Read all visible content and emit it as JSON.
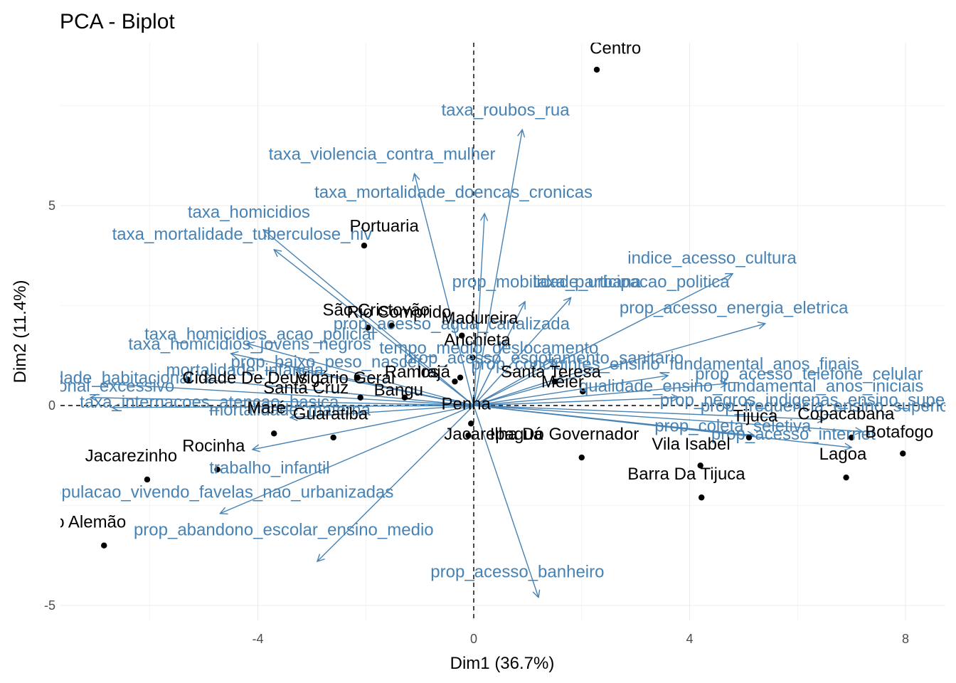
{
  "chart_data": {
    "type": "scatter",
    "title": "PCA - Biplot",
    "xlabel": "Dim1 (36.7%)",
    "ylabel": "Dim2 (11.4%)",
    "xlim": [
      -7.6,
      8.7
    ],
    "ylim": [
      -5.8,
      9.4
    ],
    "xticks": [
      -4,
      0,
      4,
      8
    ],
    "yticks": [
      -5,
      0,
      5
    ],
    "grid": true,
    "reference_lines": {
      "x": 0,
      "y": 0,
      "style": "dashed"
    },
    "colors": {
      "points": "#000000",
      "variables": "#4682b4",
      "grid": "#ebebeb",
      "zero_line": "#000000"
    },
    "individuals": [
      {
        "label": "Centro",
        "x": 2.28,
        "y": 8.4,
        "label_x": 2.15,
        "label_y": 8.8
      },
      {
        "label": "Portuaria",
        "x": -2.03,
        "y": 4.0,
        "label_x": -2.3,
        "label_y": 4.35
      },
      {
        "label": "São Cristovão",
        "x": -1.52,
        "y": 2.0,
        "label_x": -2.8,
        "label_y": 2.25
      },
      {
        "label": "Rio Comprido",
        "x": -1.96,
        "y": 1.95,
        "label_x": -2.35,
        "label_y": 2.2
      },
      {
        "label": "Madureira",
        "x": -0.22,
        "y": 1.75,
        "label_x": -0.6,
        "label_y": 2.05
      },
      {
        "label": "Anchieta",
        "x": -0.02,
        "y": 1.2,
        "label_x": -0.55,
        "label_y": 1.5
      },
      {
        "label": "Ramos",
        "x": -0.35,
        "y": 0.6,
        "label_x": -1.65,
        "label_y": 0.7
      },
      {
        "label": "Irajá",
        "x": -0.25,
        "y": 0.7,
        "label_x": -1.05,
        "label_y": 0.7
      },
      {
        "label": "Bangu",
        "x": -1.28,
        "y": 0.2,
        "label_x": -1.85,
        "label_y": 0.25
      },
      {
        "label": "Cidade De Deus",
        "x": -5.3,
        "y": 0.65,
        "label_x": -5.4,
        "label_y": 0.55
      },
      {
        "label": "Vigário Geral",
        "x": -2.15,
        "y": 0.7,
        "label_x": -3.3,
        "label_y": 0.55
      },
      {
        "label": "Santa Cruz",
        "x": -2.1,
        "y": 0.2,
        "label_x": -3.9,
        "label_y": 0.3
      },
      {
        "label": "Santa Teresa",
        "x": 1.5,
        "y": 0.6,
        "label_x": 0.5,
        "label_y": 0.7
      },
      {
        "label": "Méier",
        "x": 2.02,
        "y": 0.35,
        "label_x": 1.25,
        "label_y": 0.45
      },
      {
        "label": "Maré",
        "x": -3.7,
        "y": -0.7,
        "label_x": -4.2,
        "label_y": -0.2
      },
      {
        "label": "Guaratiba",
        "x": -2.6,
        "y": -0.8,
        "label_x": -3.35,
        "label_y": -0.35
      },
      {
        "label": "Penha",
        "x": -0.05,
        "y": -0.45,
        "label_x": -0.6,
        "label_y": -0.1
      },
      {
        "label": "Jacarepaguá",
        "x": -0.1,
        "y": -0.75,
        "label_x": -0.55,
        "label_y": -0.85
      },
      {
        "label": "Ilha Do Governador",
        "x": 2.0,
        "y": -1.3,
        "label_x": 0.3,
        "label_y": -0.85
      },
      {
        "label": "Vila Isabel",
        "x": 4.2,
        "y": -1.5,
        "label_x": 3.3,
        "label_y": -1.1
      },
      {
        "label": "Barra Da Tijuca",
        "x": 4.22,
        "y": -2.3,
        "label_x": 2.85,
        "label_y": -1.85
      },
      {
        "label": "Tijuca",
        "x": 5.1,
        "y": -0.8,
        "label_x": 4.8,
        "label_y": -0.4
      },
      {
        "label": "Copacabana",
        "x": 7.0,
        "y": -0.8,
        "label_x": 6.0,
        "label_y": -0.35
      },
      {
        "label": "Botafogo",
        "x": 7.95,
        "y": -1.2,
        "label_x": 7.25,
        "label_y": -0.8
      },
      {
        "label": "Lagoa",
        "x": 6.9,
        "y": -1.8,
        "label_x": 6.4,
        "label_y": -1.35
      },
      {
        "label": "Rocinha",
        "x": -4.75,
        "y": -1.6,
        "label_x": -5.4,
        "label_y": -1.15
      },
      {
        "label": "Jacarezinho",
        "x": -6.05,
        "y": -1.85,
        "label_x": -7.2,
        "label_y": -1.4
      },
      {
        "label": "Complexo Do Alemão",
        "x": -6.85,
        "y": -3.5,
        "label_x": -9.5,
        "label_y": -3.05
      }
    ],
    "variables": [
      {
        "label": "taxa_roubos_rua",
        "x": 0.9,
        "y": 6.9,
        "label_x": -0.6,
        "label_y": 7.25
      },
      {
        "label": "taxa_violencia_contra_mulher",
        "x": -1.1,
        "y": 5.8,
        "label_x": -3.8,
        "label_y": 6.15
      },
      {
        "label": "taxa_mortalidade_doencas_cronicas",
        "x": 0.2,
        "y": 4.8,
        "label_x": -2.95,
        "label_y": 5.2
      },
      {
        "label": "taxa_homicidios",
        "x": -3.9,
        "y": 4.4,
        "label_x": -5.3,
        "label_y": 4.7
      },
      {
        "label": "taxa_mortalidade_tuberculose_hiv",
        "x": -3.7,
        "y": 3.9,
        "label_x": -6.7,
        "label_y": 4.15
      },
      {
        "label": "indice_acesso_cultura",
        "x": 4.8,
        "y": 3.3,
        "label_x": 2.85,
        "label_y": 3.55
      },
      {
        "label": "taxa_participacao_politica",
        "x": 1.8,
        "y": 2.7,
        "label_x": 1.1,
        "label_y": 2.95
      },
      {
        "label": "prop_mobilidade_urbana",
        "x": 0.95,
        "y": 2.6,
        "label_x": -0.4,
        "label_y": 2.95
      },
      {
        "label": "prop_acesso_energia_eletrica",
        "x": 5.4,
        "y": 2.05,
        "label_x": 2.7,
        "label_y": 2.3
      },
      {
        "label": "prop_acesso_agua_canalizada",
        "x": 0.6,
        "y": 1.65,
        "label_x": -2.6,
        "label_y": 1.9
      },
      {
        "label": "taxa_homicidios_acao_policial",
        "x": -4.2,
        "y": 1.55,
        "label_x": -6.1,
        "label_y": 1.65
      },
      {
        "label": "taxa_homicidios_jovens_negros",
        "x": -4.5,
        "y": 1.3,
        "label_x": -6.4,
        "label_y": 1.4
      },
      {
        "label": "tempo_medio_deslocamento",
        "x": 1.5,
        "y": 1.15,
        "label_x": -1.75,
        "label_y": 1.3
      },
      {
        "label": "prop_acesso_esgotamento_sanitario",
        "x": 2.2,
        "y": 0.95,
        "label_x": -1.3,
        "label_y": 1.05
      },
      {
        "label": "prop_concluintes_ensino_fundamental_anos_finais",
        "x": 3.6,
        "y": 0.75,
        "label_x": -0.05,
        "label_y": 0.9
      },
      {
        "label": "prop_baixo_peso_nascer",
        "x": -3.3,
        "y": 0.9,
        "label_x": -4.5,
        "label_y": 0.95
      },
      {
        "label": "mortalidade_infancia",
        "x": -5.0,
        "y": 0.65,
        "label_x": -5.7,
        "label_y": 0.75
      },
      {
        "label": "prop_acesso_telefone_celular",
        "x": 4.7,
        "y": 0.55,
        "label_x": 4.1,
        "label_y": 0.65
      },
      {
        "label": "qualidade_ensino_fundamental_anos_iniciais",
        "x": 3.8,
        "y": 0.2,
        "label_x": 1.95,
        "label_y": 0.35
      },
      {
        "label": "vulnerabilidade_habitacional",
        "x": -6.9,
        "y": 0.55,
        "label_x": -9.2,
        "label_y": 0.55
      },
      {
        "label": "deficit_habitacional_excessivo",
        "x": -7.1,
        "y": 0.2,
        "label_x": -9.8,
        "label_y": 0.35
      },
      {
        "label": "taxa_internacoes_atencao_basica",
        "x": -6.7,
        "y": -0.05,
        "label_x": -7.3,
        "label_y": -0.05
      },
      {
        "label": "mortalidade_materna",
        "x": -3.4,
        "y": -0.3,
        "label_x": -4.9,
        "label_y": -0.25
      },
      {
        "label": "prop_negros_indigenas_ensino_superior",
        "x": 6.5,
        "y": -0.35,
        "label_x": 3.45,
        "label_y": 0.0
      },
      {
        "label": "prop_frequencia_ensino_superior",
        "x": 7.2,
        "y": -0.65,
        "label_x": 4.2,
        "label_y": -0.15
      },
      {
        "label": "prop_coleta_seletiva",
        "x": 5.2,
        "y": -0.75,
        "label_x": 3.35,
        "label_y": -0.65
      },
      {
        "label": "prop_acesso_internet",
        "x": 7.0,
        "y": -1.05,
        "label_x": 4.4,
        "label_y": -0.85
      },
      {
        "label": "trabalho_infantil",
        "x": -4.1,
        "y": -1.1,
        "label_x": -4.9,
        "label_y": -1.7
      },
      {
        "label": "prop_populacao_vivendo_favelas_nao_urbanizadas",
        "x": -4.7,
        "y": -2.7,
        "label_x": -8.8,
        "label_y": -2.3
      },
      {
        "label": "prop_abandono_escolar_ensino_medio",
        "x": -2.9,
        "y": -3.9,
        "label_x": -6.3,
        "label_y": -3.25
      },
      {
        "label": "prop_acesso_banheiro",
        "x": 1.2,
        "y": -4.8,
        "label_x": -0.8,
        "label_y": -4.3
      }
    ]
  }
}
